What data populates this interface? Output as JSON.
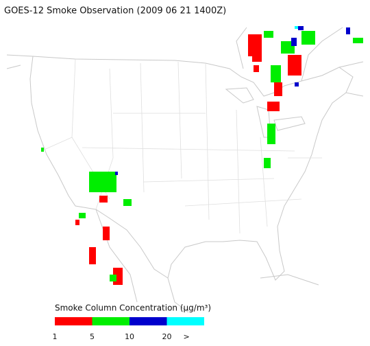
{
  "title": "GOES-12 Smoke Observation (2009 06 21  1400Z)",
  "legend": {
    "title": "Smoke Column Concentration (μg/m³)",
    "colors": [
      "#ff0000",
      "#00ee00",
      "#0000cc",
      "#00ffff"
    ],
    "labels": [
      "1",
      "5",
      "10",
      "20",
      ">"
    ]
  }
}
